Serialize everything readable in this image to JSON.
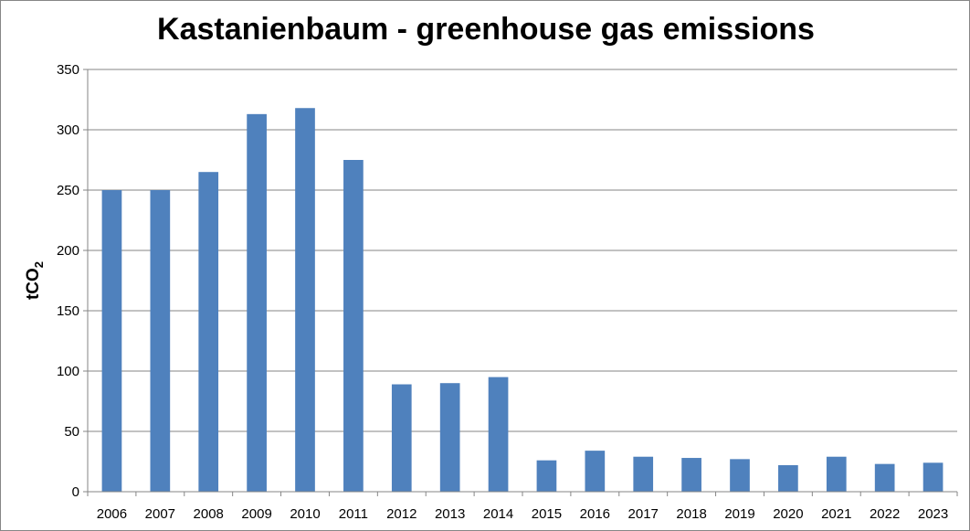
{
  "chart_data": {
    "type": "bar",
    "title": "Kastanienbaum - greenhouse gas emissions",
    "ylabel": "tCO",
    "ylabel_sub": "2",
    "xlabel": "",
    "categories": [
      "2006",
      "2007",
      "2008",
      "2009",
      "2010",
      "2011",
      "2012",
      "2013",
      "2014",
      "2015",
      "2016",
      "2017",
      "2018",
      "2019",
      "2020",
      "2021",
      "2022",
      "2023"
    ],
    "values": [
      250,
      250,
      265,
      313,
      318,
      275,
      89,
      90,
      95,
      26,
      34,
      29,
      28,
      27,
      22,
      29,
      23,
      24
    ],
    "ylim": [
      0,
      350
    ],
    "yticks": [
      0,
      50,
      100,
      150,
      200,
      250,
      300,
      350
    ],
    "grid": true,
    "legend": "none",
    "colors": {
      "bar": "#4F81BD",
      "grid": "#868686",
      "axis": "#868686"
    }
  }
}
